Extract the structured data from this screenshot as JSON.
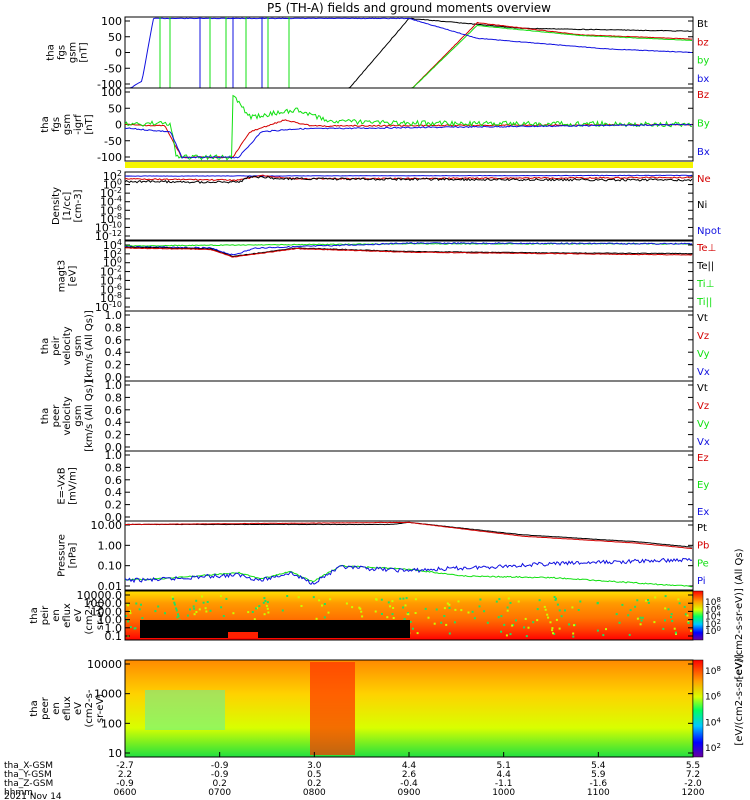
{
  "title": "P5 (TH-A) fields and ground moments overview",
  "colors": {
    "black": "#000000",
    "red": "#d40000",
    "green": "#10e010",
    "blue": "#1010e0",
    "yellow": "#f5f500"
  },
  "chart_data": [
    {
      "type": "line",
      "id": "fgs",
      "ylabel": [
        "tha",
        "fgs",
        "gsm",
        "[nT]"
      ],
      "yticks": [
        "100",
        "50",
        "0",
        "-50",
        "-100"
      ],
      "ylim": [
        -100,
        100
      ],
      "series": [
        {
          "name": "Bt",
          "color": "#000000"
        },
        {
          "name": "bz",
          "color": "#d40000"
        },
        {
          "name": "by",
          "color": "#10e010"
        },
        {
          "name": "bx",
          "color": "#1010e0"
        }
      ]
    },
    {
      "type": "line",
      "id": "fgs_dip",
      "ylabel": [
        "tha",
        "fgs",
        "gsm",
        "-igrf",
        "[nT]"
      ],
      "yticks": [
        "100",
        "50",
        "0",
        "-50",
        "-100"
      ],
      "ylim": [
        -125,
        125
      ],
      "series": [
        {
          "name": "Bz",
          "color": "#d40000"
        },
        {
          "name": "By",
          "color": "#10e010"
        },
        {
          "name": "Bx",
          "color": "#1010e0"
        }
      ]
    },
    {
      "type": "line",
      "id": "density",
      "log": true,
      "ylabel": [
        "Density",
        "[1/cc]",
        "[cm-3]"
      ],
      "yticks": [
        "10^2",
        "10^0",
        "10^-2",
        "10^-4",
        "10^-6",
        "10^-8",
        "10^-10",
        "10^-12"
      ],
      "ylim_exp": [
        -12,
        2
      ],
      "series": [
        {
          "name": "Ne",
          "color": "#d40000"
        },
        {
          "name": "Ni",
          "color": "#000000"
        },
        {
          "name": "Npot",
          "color": "#1010e0"
        }
      ]
    },
    {
      "type": "line",
      "id": "temp",
      "log": true,
      "ylabel": [
        "magt3",
        "[eV]"
      ],
      "yticks": [
        "10^4",
        "10^2",
        "10^0",
        "10^-2",
        "10^-4",
        "10^-6",
        "10^-8",
        "10^-10"
      ],
      "ylim_exp": [
        -10,
        4
      ],
      "series": [
        {
          "name": "Te⊥",
          "color": "#d40000"
        },
        {
          "name": "Te||",
          "color": "#000000"
        },
        {
          "name": "Ti⊥",
          "color": "#10e010"
        },
        {
          "name": "Ti||",
          "color": "#10e010"
        }
      ]
    },
    {
      "type": "line",
      "id": "peir_vel",
      "ylabel": [
        "tha",
        "peir",
        "velocity",
        "gsm",
        "[km/s (All Qs)]"
      ],
      "yticks": [
        "1.0",
        "0.8",
        "0.6",
        "0.4",
        "0.2",
        "0.0"
      ],
      "ylim": [
        0,
        1
      ],
      "series": [
        {
          "name": "Vt",
          "color": "#000000"
        },
        {
          "name": "Vz",
          "color": "#d40000"
        },
        {
          "name": "Vy",
          "color": "#10e010"
        },
        {
          "name": "Vx",
          "color": "#1010e0"
        }
      ]
    },
    {
      "type": "line",
      "id": "peer_vel",
      "ylabel": [
        "tha",
        "peer",
        "velocity",
        "gsm",
        "[km/s (All Qs)]"
      ],
      "yticks": [
        "1.0",
        "0.8",
        "0.6",
        "0.4",
        "0.2",
        "0.0"
      ],
      "ylim": [
        0,
        1
      ],
      "series": [
        {
          "name": "Vt",
          "color": "#000000"
        },
        {
          "name": "Vz",
          "color": "#d40000"
        },
        {
          "name": "Vy",
          "color": "#10e010"
        },
        {
          "name": "Vx",
          "color": "#1010e0"
        }
      ]
    },
    {
      "type": "line",
      "id": "efield",
      "ylabel": [
        "E=-VxB",
        "[mV/m]"
      ],
      "yticks": [
        "1.0",
        "0.8",
        "0.6",
        "0.4",
        "0.2",
        "0.0"
      ],
      "ylim": [
        0,
        1
      ],
      "series": [
        {
          "name": "Ez",
          "color": "#d40000"
        },
        {
          "name": "Ey",
          "color": "#10e010"
        },
        {
          "name": "Ex",
          "color": "#1010e0"
        }
      ]
    },
    {
      "type": "line",
      "id": "pressure",
      "log": true,
      "ylabel": [
        "Pressure",
        "[nPa]"
      ],
      "yticks": [
        "10.00",
        "1.00",
        "0.10",
        "0.01"
      ],
      "ylim": [
        0.005,
        30
      ],
      "series": [
        {
          "name": "Pt",
          "color": "#000000"
        },
        {
          "name": "Pb",
          "color": "#d40000"
        },
        {
          "name": "Pe",
          "color": "#10e010"
        },
        {
          "name": "Pi",
          "color": "#1010e0"
        }
      ]
    },
    {
      "type": "heatmap",
      "id": "peir_en",
      "ylabel": [
        "tha",
        "peir",
        "en",
        "eflux",
        "eV",
        "(cm2-s-",
        "sr-eV)"
      ],
      "yticks": [
        "10000.0",
        "1000.0",
        "100.0",
        "10.0",
        "1.0",
        "0.1"
      ],
      "colorbar_ticks": [
        "10^8",
        "10^6",
        "10^4",
        "10^2",
        "10^0"
      ],
      "colorbar_label": "[eV/(cm2-s-sr-eV)] (All Qs)"
    },
    {
      "type": "heatmap",
      "id": "peer_en",
      "ylabel": [
        "tha",
        "peer",
        "en",
        "eflux",
        "eV",
        "(cm2-s-",
        "sr-eV)"
      ],
      "yticks": [
        "10000",
        "1000",
        "100",
        "10"
      ],
      "colorbar_ticks": [
        "10^8",
        "10^6",
        "10^4",
        "10^2"
      ],
      "colorbar_label": "[eV/(cm2-s-sr-eV)]"
    }
  ],
  "x_axis": {
    "row_labels": [
      "tha_X-GSM",
      "tha_Y-GSM",
      "tha_Z-GSM",
      "hhmm"
    ],
    "columns": [
      {
        "x": "-2.7",
        "y": "2.2",
        "z": "-0.9",
        "t": "0600"
      },
      {
        "x": "-0.9",
        "y": "-0.9",
        "z": "0.2",
        "t": "0700"
      },
      {
        "x": "3.0",
        "y": "0.5",
        "z": "0.2",
        "t": "0800"
      },
      {
        "x": "4.4",
        "y": "2.6",
        "z": "-0.4",
        "t": "0900"
      },
      {
        "x": "5.1",
        "y": "4.4",
        "z": "-1.1",
        "t": "1000"
      },
      {
        "x": "5.4",
        "y": "5.9",
        "z": "-1.6",
        "t": "1100"
      },
      {
        "x": "5.5",
        "y": "7.2",
        "z": "-2.0",
        "t": "1200"
      }
    ],
    "date": "2021 Nov 14"
  }
}
